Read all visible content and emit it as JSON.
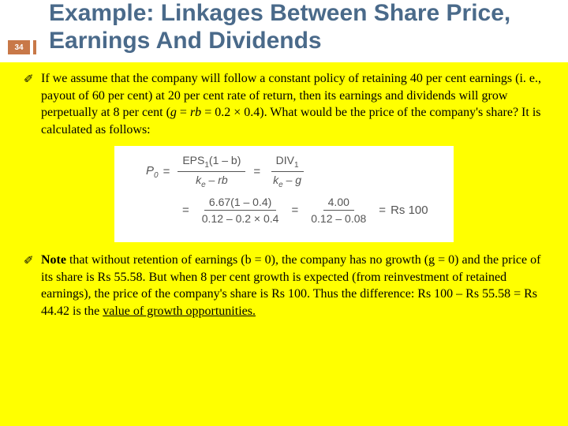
{
  "slide": {
    "number": "34",
    "title": "Example: Linkages Between Share Price, Earnings And Dividends",
    "title_color": "#4a6a8a",
    "accent_color": "#c87848",
    "background_color": "#ffff00",
    "header_background": "#ffffff",
    "formula_background": "#ffffff",
    "text_color": "#000000",
    "formula_text_color": "#555555",
    "title_fontsize": 30,
    "body_fontsize": 16,
    "formula_fontsize": 15
  },
  "bullets": [
    {
      "text_parts": {
        "p1": "If we assume that the company will follow a constant policy of retaining 40 per cent earnings (i. e., payout of 60 per cent) at 20 per cent rate of return, then its earnings and dividends will grow perpetually at 8 per cent (",
        "p2": "g",
        "p3": " = ",
        "p4": "rb",
        "p5": " = 0.2 × 0.4). What would be the price of the company's share? It is calculated as follows:"
      }
    },
    {
      "text_parts": {
        "p1": "Note ",
        "p2": "that without retention of earnings (b = 0), the company has no growth (g = 0) and the price of its share is Rs 55.58. But when 8 per cent growth is expected (from reinvestment of retained earnings), the price of the company's share is Rs 100. Thus the difference: Rs 100 – Rs 55.58 =  Rs 44.42 is the ",
        "p3": "value of growth opportunities."
      }
    }
  ],
  "formula": {
    "row1": {
      "lhs_var": "P",
      "lhs_sub": "0",
      "frac1_num_a": "EPS",
      "frac1_num_sub": "1",
      "frac1_num_b": "(1 – b)",
      "frac1_den_a": "k",
      "frac1_den_sub": "e",
      "frac1_den_b": " – rb",
      "frac2_num_a": "DIV",
      "frac2_num_sub": "1",
      "frac2_den_a": "k",
      "frac2_den_sub": "e",
      "frac2_den_b": " – g"
    },
    "row2": {
      "frac1_num": "6.67(1 – 0.4)",
      "frac1_den": "0.12 – 0.2 × 0.4",
      "frac2_num": "4.00",
      "frac2_den": "0.12 – 0.08",
      "result": "Rs 100"
    },
    "eq": "="
  }
}
